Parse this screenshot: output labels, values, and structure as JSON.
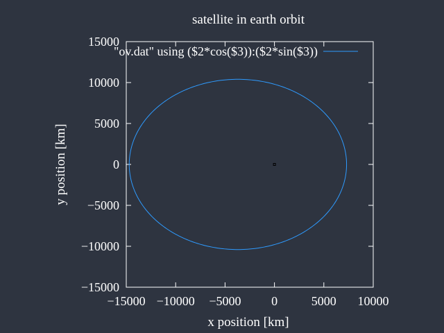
{
  "chart_data": {
    "type": "line",
    "title": "satellite in earth orbit",
    "xlabel": "x position [km]",
    "ylabel": "y position [km]",
    "xlim": [
      -15000,
      10000
    ],
    "ylim": [
      -15000,
      15000
    ],
    "xticks": [
      -15000,
      -10000,
      -5000,
      0,
      5000,
      10000
    ],
    "yticks": [
      -15000,
      -10000,
      -5000,
      0,
      5000,
      10000,
      15000
    ],
    "xtick_labels": [
      "−15000",
      "−10000",
      "−5000",
      "0",
      "5000",
      "10000"
    ],
    "ytick_labels": [
      "−15000",
      "−10000",
      "−5000",
      "0",
      "5000",
      "10000",
      "15000"
    ],
    "grid": false,
    "legend_position": "top-right",
    "colors": {
      "background": "#2e3440",
      "series": "#2e9bff",
      "axes": "#ffffff",
      "marker": "#000000"
    },
    "series": [
      {
        "name": "\"ov.dat\" using ($2*cos($3)):($2*sin($3))",
        "shape": "ellipse",
        "center": [
          -3700,
          0
        ],
        "semi_axis_x": 11000,
        "semi_axis_y": 10400
      }
    ],
    "annotations": [
      {
        "type": "marker",
        "shape": "square",
        "x": 0,
        "y": 0,
        "color": "#000000"
      }
    ]
  }
}
